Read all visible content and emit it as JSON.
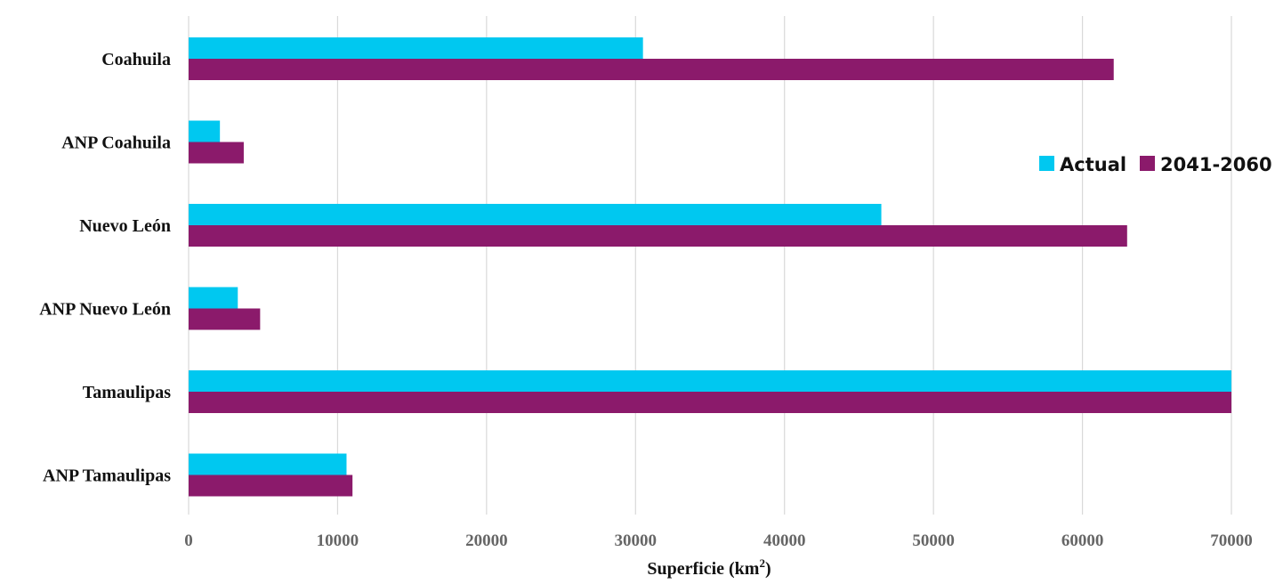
{
  "chart_data": {
    "type": "bar",
    "orientation": "horizontal",
    "categories": [
      "Coahuila",
      "ANP Coahuila",
      "Nuevo León",
      "ANP Nuevo León",
      "Tamaulipas",
      "ANP Tamaulipas"
    ],
    "series": [
      {
        "name": "Actual",
        "color": "#00c8f0",
        "values": [
          30500,
          2100,
          46500,
          3300,
          70000,
          10600
        ]
      },
      {
        "name": "2041-2060",
        "color": "#8b1a6b",
        "values": [
          62100,
          3700,
          63000,
          4800,
          70000,
          11000
        ]
      }
    ],
    "xlabel": "Superficie (km",
    "xlabel_sup": "2",
    "xlabel_close": ")",
    "xlim": [
      0,
      70000
    ],
    "xticks": [
      0,
      10000,
      20000,
      30000,
      40000,
      50000,
      60000,
      70000
    ],
    "grid": "vertical",
    "legend_position": "right"
  }
}
